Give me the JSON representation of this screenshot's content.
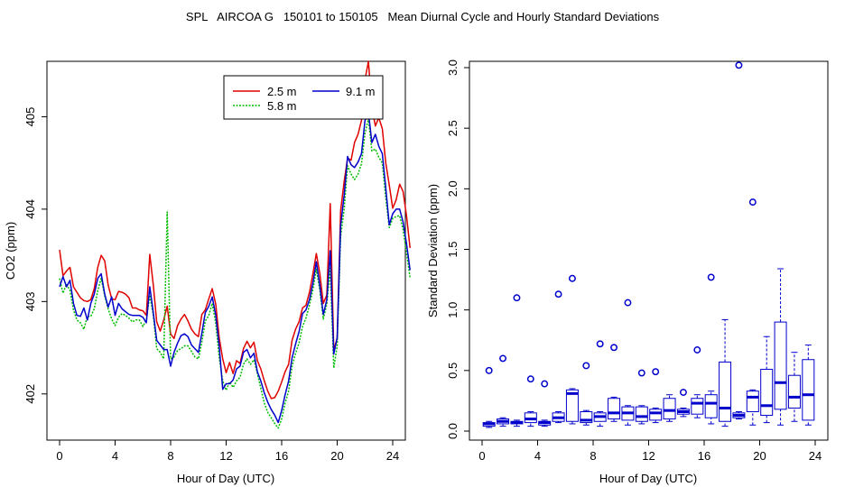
{
  "chart_data": [
    {
      "type": "line",
      "title": "SPL   AIRCOA G   150101 to 150105   Mean Diurnal Cycle and Hourly Standard Deviations",
      "xlabel": "Hour of Day (UTC)",
      "ylabel": "CO2 (ppm)",
      "xlim": [
        0,
        24
      ],
      "ylim": [
        401.5,
        405.6
      ],
      "xticks": [
        "0",
        "4",
        "8",
        "12",
        "16",
        "20",
        "24"
      ],
      "yticks": [
        "402",
        "403",
        "404",
        "405"
      ],
      "legend_position": "top-right",
      "x_step": 0.25,
      "series": [
        {
          "name": "2.5 m",
          "color": "#e00000",
          "values": [
            403.56,
            403.28,
            403.33,
            403.37,
            403.16,
            403.1,
            403.04,
            403.01,
            403.0,
            403.02,
            403.14,
            403.37,
            403.5,
            403.44,
            403.18,
            403.03,
            403.02,
            403.11,
            403.1,
            403.08,
            403.04,
            402.93,
            402.93,
            402.91,
            402.9,
            402.85,
            403.51,
            403.18,
            402.78,
            402.68,
            402.8,
            402.95,
            402.65,
            402.6,
            402.74,
            402.81,
            402.86,
            402.79,
            402.7,
            402.65,
            402.62,
            402.86,
            402.91,
            403.03,
            403.14,
            402.97,
            402.61,
            402.38,
            402.23,
            402.34,
            402.22,
            402.36,
            402.33,
            402.49,
            402.57,
            402.5,
            402.56,
            402.36,
            402.27,
            402.14,
            402.03,
            401.95,
            401.96,
            402.03,
            402.13,
            402.24,
            402.32,
            402.58,
            402.7,
            402.78,
            402.93,
            402.96,
            403.1,
            403.3,
            403.52,
            403.3,
            402.98,
            403.07,
            404.06,
            402.48,
            402.6,
            403.98,
            404.3,
            404.55,
            404.53,
            404.72,
            404.81,
            404.96,
            405.4,
            405.6,
            405.1,
            404.9,
            404.99,
            404.87,
            404.5,
            404.26,
            404.01,
            404.1,
            404.27,
            404.19,
            403.92,
            403.58
          ]
        },
        {
          "name": "5.8 m",
          "color": "#00bb00",
          "values": [
            403.25,
            403.09,
            403.19,
            403.12,
            402.91,
            402.8,
            402.77,
            402.7,
            402.84,
            402.84,
            402.92,
            403.12,
            403.25,
            403.06,
            402.92,
            402.81,
            402.74,
            402.83,
            402.87,
            402.85,
            402.82,
            402.78,
            402.8,
            402.8,
            402.73,
            402.8,
            403.07,
            402.85,
            402.49,
            402.45,
            402.38,
            403.97,
            402.38,
            402.4,
            402.47,
            402.49,
            402.52,
            402.52,
            402.46,
            402.4,
            402.38,
            402.56,
            402.79,
            402.85,
            402.98,
            402.76,
            402.4,
            402.14,
            402.04,
            402.13,
            402.07,
            402.14,
            402.18,
            402.32,
            402.38,
            402.32,
            402.37,
            402.22,
            402.06,
            401.9,
            401.8,
            401.74,
            401.68,
            401.63,
            401.73,
            401.9,
            402.03,
            402.3,
            402.44,
            402.55,
            402.73,
            402.82,
            402.96,
            403.13,
            403.35,
            403.12,
            402.81,
            402.97,
            403.36,
            402.28,
            402.52,
            403.7,
            404.0,
            404.47,
            404.38,
            404.32,
            404.38,
            404.49,
            404.82,
            404.98,
            404.63,
            404.65,
            404.56,
            404.5,
            404.12,
            403.8,
            403.9,
            403.92,
            403.93,
            403.78,
            403.52,
            403.26
          ]
        },
        {
          "name": "9.1 m",
          "color": "#0000cc",
          "values": [
            403.16,
            403.27,
            403.16,
            403.23,
            402.98,
            402.85,
            402.84,
            402.93,
            402.8,
            402.98,
            403.08,
            403.25,
            403.3,
            403.08,
            402.94,
            403.05,
            402.85,
            402.98,
            402.92,
            402.89,
            402.86,
            402.85,
            402.85,
            402.85,
            402.83,
            402.77,
            403.16,
            402.88,
            402.58,
            402.53,
            402.48,
            402.48,
            402.3,
            402.45,
            402.55,
            402.63,
            402.65,
            402.62,
            402.53,
            402.49,
            402.45,
            402.66,
            402.88,
            402.95,
            403.05,
            402.85,
            402.52,
            402.05,
            402.11,
            402.11,
            402.15,
            402.27,
            402.3,
            402.45,
            402.48,
            402.39,
            402.44,
            402.24,
            402.14,
            402.01,
            401.91,
            401.83,
            401.77,
            401.69,
            401.82,
            401.99,
            402.14,
            402.39,
            402.54,
            402.67,
            402.87,
            402.91,
            403.02,
            403.2,
            403.43,
            403.17,
            402.86,
            403.02,
            403.55,
            402.43,
            402.61,
            403.82,
            404.15,
            404.57,
            404.48,
            404.45,
            404.51,
            404.6,
            404.96,
            405.05,
            404.72,
            404.81,
            404.68,
            404.6,
            404.23,
            403.83,
            403.95,
            404.0,
            404.0,
            403.86,
            403.62,
            403.34
          ]
        }
      ]
    },
    {
      "type": "box",
      "xlabel": "Hour of Day (UTC)",
      "ylabel": "Standard Deviation (ppm)",
      "xlim": [
        0,
        24
      ],
      "ylim": [
        0,
        3
      ],
      "xticks": [
        "0",
        "4",
        "8",
        "12",
        "16",
        "20",
        "24"
      ],
      "yticks": [
        "0.0",
        "0.5",
        "1.0",
        "1.5",
        "2.0",
        "2.5",
        "3.0"
      ],
      "color": "#0000cc",
      "boxes": [
        {
          "hour": 0.5,
          "min": 0.03,
          "q1": 0.04,
          "median": 0.06,
          "q3": 0.07,
          "max": 0.08,
          "outliers": [
            0.5
          ]
        },
        {
          "hour": 1.5,
          "min": 0.04,
          "q1": 0.06,
          "median": 0.08,
          "q3": 0.1,
          "max": 0.11,
          "outliers": [
            0.6
          ]
        },
        {
          "hour": 2.5,
          "min": 0.04,
          "q1": 0.06,
          "median": 0.07,
          "q3": 0.08,
          "max": 0.09,
          "outliers": [
            1.1
          ]
        },
        {
          "hour": 3.5,
          "min": 0.04,
          "q1": 0.07,
          "median": 0.1,
          "q3": 0.15,
          "max": 0.16,
          "outliers": [
            0.43
          ]
        },
        {
          "hour": 4.5,
          "min": 0.04,
          "q1": 0.05,
          "median": 0.07,
          "q3": 0.08,
          "max": 0.09,
          "outliers": [
            0.39
          ]
        },
        {
          "hour": 5.5,
          "min": 0.07,
          "q1": 0.08,
          "median": 0.11,
          "q3": 0.15,
          "max": 0.16,
          "outliers": [
            1.13
          ]
        },
        {
          "hour": 6.5,
          "min": 0.06,
          "q1": 0.08,
          "median": 0.31,
          "q3": 0.34,
          "max": 0.35,
          "outliers": [
            1.26
          ]
        },
        {
          "hour": 7.5,
          "min": 0.05,
          "q1": 0.07,
          "median": 0.09,
          "q3": 0.16,
          "max": 0.17,
          "outliers": [
            0.54
          ]
        },
        {
          "hour": 8.5,
          "min": 0.04,
          "q1": 0.08,
          "median": 0.12,
          "q3": 0.15,
          "max": 0.16,
          "outliers": [
            0.72
          ]
        },
        {
          "hour": 9.5,
          "min": 0.08,
          "q1": 0.1,
          "median": 0.15,
          "q3": 0.27,
          "max": 0.28,
          "outliers": [
            0.69
          ]
        },
        {
          "hour": 10.5,
          "min": 0.05,
          "q1": 0.09,
          "median": 0.15,
          "q3": 0.2,
          "max": 0.21,
          "outliers": [
            1.06
          ]
        },
        {
          "hour": 11.5,
          "min": 0.06,
          "q1": 0.08,
          "median": 0.12,
          "q3": 0.2,
          "max": 0.21,
          "outliers": [
            0.48
          ]
        },
        {
          "hour": 12.5,
          "min": 0.07,
          "q1": 0.09,
          "median": 0.15,
          "q3": 0.18,
          "max": 0.19,
          "outliers": [
            0.49
          ]
        },
        {
          "hour": 13.5,
          "min": 0.08,
          "q1": 0.1,
          "median": 0.17,
          "q3": 0.27,
          "max": 0.3,
          "outliers": []
        },
        {
          "hour": 14.5,
          "min": 0.12,
          "q1": 0.14,
          "median": 0.16,
          "q3": 0.18,
          "max": 0.19,
          "outliers": [
            0.32
          ]
        },
        {
          "hour": 15.5,
          "min": 0.11,
          "q1": 0.14,
          "median": 0.23,
          "q3": 0.27,
          "max": 0.3,
          "outliers": [
            0.67
          ]
        },
        {
          "hour": 16.5,
          "min": 0.06,
          "q1": 0.11,
          "median": 0.23,
          "q3": 0.3,
          "max": 0.33,
          "outliers": [
            1.27
          ]
        },
        {
          "hour": 17.5,
          "min": 0.04,
          "q1": 0.08,
          "median": 0.19,
          "q3": 0.57,
          "max": 0.92,
          "outliers": []
        },
        {
          "hour": 18.5,
          "min": 0.1,
          "q1": 0.11,
          "median": 0.13,
          "q3": 0.15,
          "max": 0.16,
          "outliers": [
            3.02
          ]
        },
        {
          "hour": 19.5,
          "min": 0.05,
          "q1": 0.16,
          "median": 0.28,
          "q3": 0.33,
          "max": 0.34,
          "outliers": [
            1.89
          ]
        },
        {
          "hour": 20.5,
          "min": 0.07,
          "q1": 0.13,
          "median": 0.21,
          "q3": 0.51,
          "max": 0.78,
          "outliers": []
        },
        {
          "hour": 21.5,
          "min": 0.05,
          "q1": 0.18,
          "median": 0.4,
          "q3": 0.9,
          "max": 1.34,
          "outliers": []
        },
        {
          "hour": 22.5,
          "min": 0.08,
          "q1": 0.19,
          "median": 0.28,
          "q3": 0.46,
          "max": 0.65,
          "outliers": []
        },
        {
          "hour": 23.5,
          "min": 0.05,
          "q1": 0.09,
          "median": 0.3,
          "q3": 0.59,
          "max": 0.71,
          "outliers": []
        }
      ]
    }
  ]
}
